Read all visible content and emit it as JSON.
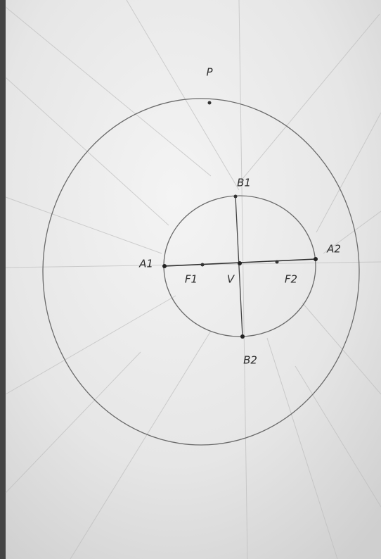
{
  "nodes": [
    {
      "label": "P"
    },
    {
      "label": "B1"
    },
    {
      "label": "A1"
    },
    {
      "label": "A2"
    },
    {
      "label": "F1"
    },
    {
      "label": "V"
    },
    {
      "label": "F2"
    },
    {
      "label": "B2"
    }
  ]
}
